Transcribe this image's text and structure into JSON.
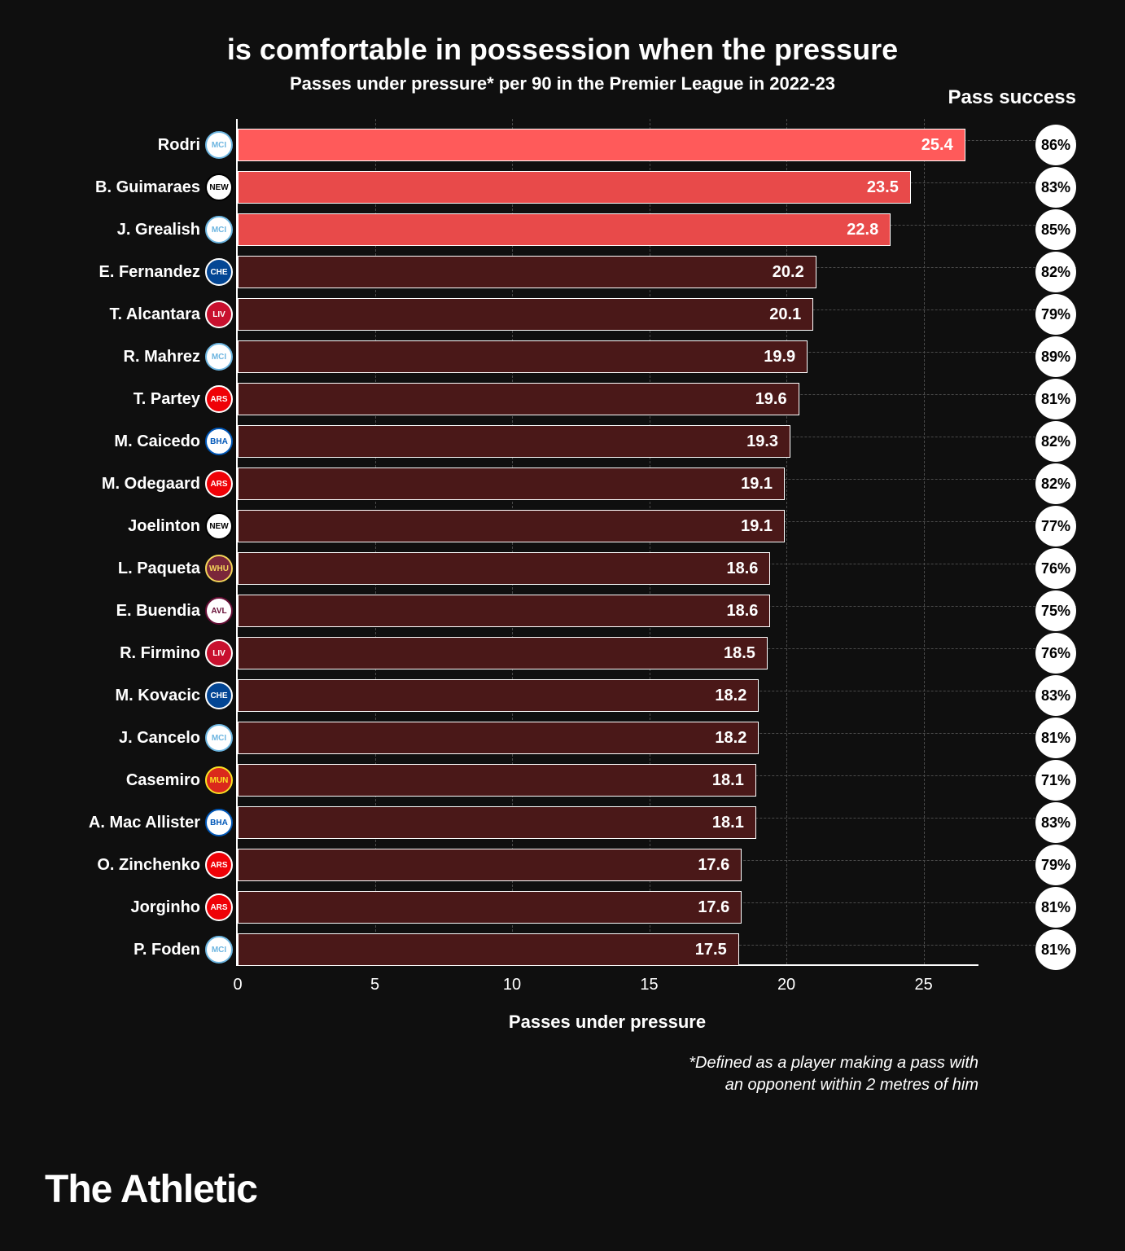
{
  "title": "is comfortable in possession when the pressure",
  "subtitle": "Passes under pressure* per 90 in the Premier League in 2022-23",
  "success_header": "Pass success",
  "xlabel": "Passes under pressure",
  "footnote_l1": "*Defined as a player making a pass with",
  "footnote_l2": "an opponent within 2 metres of him",
  "brand": "The Athletic",
  "chart": {
    "type": "bar-horizontal",
    "xmin": 0,
    "xmax": 27,
    "xticks": [
      0,
      5,
      10,
      15,
      20,
      25
    ],
    "bar_border": "#ffffff",
    "highlight_colors": [
      "#ff5a5a",
      "#e84a4a",
      "#e84a4a"
    ],
    "default_color": "#4a1818",
    "grid_color": "#4a4a4a",
    "background": "#0f0f0f"
  },
  "teams": {
    "mci": {
      "bg": "#ffffff",
      "ring": "#6cb5e0",
      "text": "MCI",
      "fg": "#6cb5e0"
    },
    "new": {
      "bg": "#ffffff",
      "ring": "#000000",
      "text": "NEW",
      "fg": "#000000"
    },
    "che": {
      "bg": "#034694",
      "ring": "#ffffff",
      "text": "CHE",
      "fg": "#ffffff"
    },
    "liv": {
      "bg": "#c8102e",
      "ring": "#ffffff",
      "text": "LIV",
      "fg": "#ffffff"
    },
    "ars": {
      "bg": "#ef0107",
      "ring": "#ffffff",
      "text": "ARS",
      "fg": "#ffffff"
    },
    "bha": {
      "bg": "#ffffff",
      "ring": "#0057b8",
      "text": "BHA",
      "fg": "#0057b8"
    },
    "whu": {
      "bg": "#7a263a",
      "ring": "#f3d459",
      "text": "WHU",
      "fg": "#f3d459"
    },
    "avl": {
      "bg": "#ffffff",
      "ring": "#670e36",
      "text": "AVL",
      "fg": "#670e36"
    },
    "mun": {
      "bg": "#da291c",
      "ring": "#fbe122",
      "text": "MUN",
      "fg": "#fbe122"
    }
  },
  "rows": [
    {
      "name": "Rodri",
      "team": "mci",
      "value": 25.4,
      "success": "86%",
      "hl": 0
    },
    {
      "name": "B. Guimaraes",
      "team": "new",
      "value": 23.5,
      "success": "83%",
      "hl": 1
    },
    {
      "name": "J. Grealish",
      "team": "mci",
      "value": 22.8,
      "success": "85%",
      "hl": 2
    },
    {
      "name": "E. Fernandez",
      "team": "che",
      "value": 20.2,
      "success": "82%"
    },
    {
      "name": "T. Alcantara",
      "team": "liv",
      "value": 20.1,
      "success": "79%"
    },
    {
      "name": "R. Mahrez",
      "team": "mci",
      "value": 19.9,
      "success": "89%"
    },
    {
      "name": "T. Partey",
      "team": "ars",
      "value": 19.6,
      "success": "81%"
    },
    {
      "name": "M. Caicedo",
      "team": "bha",
      "value": 19.3,
      "success": "82%"
    },
    {
      "name": "M. Odegaard",
      "team": "ars",
      "value": 19.1,
      "success": "82%"
    },
    {
      "name": "Joelinton",
      "team": "new",
      "value": 19.1,
      "success": "77%"
    },
    {
      "name": "L. Paqueta",
      "team": "whu",
      "value": 18.6,
      "success": "76%"
    },
    {
      "name": "E. Buendia",
      "team": "avl",
      "value": 18.6,
      "success": "75%"
    },
    {
      "name": "R. Firmino",
      "team": "liv",
      "value": 18.5,
      "success": "76%"
    },
    {
      "name": "M. Kovacic",
      "team": "che",
      "value": 18.2,
      "success": "83%"
    },
    {
      "name": "J. Cancelo",
      "team": "mci",
      "value": 18.2,
      "success": "81%"
    },
    {
      "name": "Casemiro",
      "team": "mun",
      "value": 18.1,
      "success": "71%"
    },
    {
      "name": "A. Mac Allister",
      "team": "bha",
      "value": 18.1,
      "success": "83%"
    },
    {
      "name": "O. Zinchenko",
      "team": "ars",
      "value": 17.6,
      "success": "79%"
    },
    {
      "name": "Jorginho",
      "team": "ars",
      "value": 17.6,
      "success": "81%"
    },
    {
      "name": "P. Foden",
      "team": "mci",
      "value": 17.5,
      "success": "81%"
    }
  ]
}
